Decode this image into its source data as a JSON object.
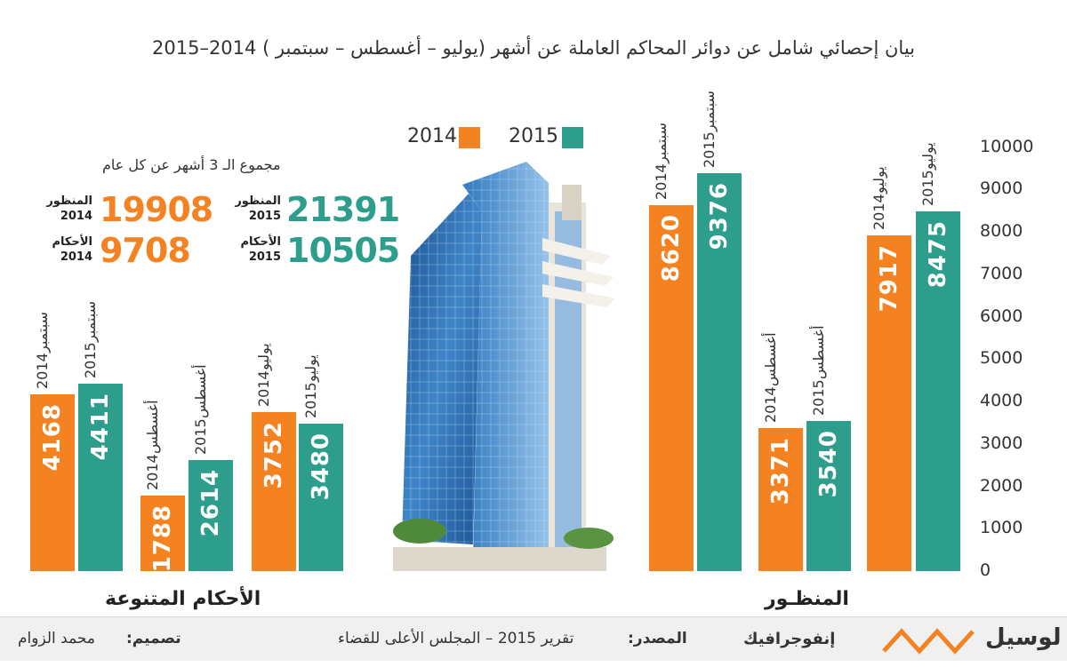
{
  "title": "بيان إحصائي شامل عن دوائر المحاكم العاملة عن أشهر (يوليو – أغسطس – سبتمبر ) 2014–2015",
  "colors": {
    "y2014": "#f58220",
    "y2015": "#2e9e8c"
  },
  "legend": {
    "y2015": "2015",
    "y2014": "2014"
  },
  "summary": {
    "caption": "مجموع الـ 3 أشهر عن كل عام",
    "items": [
      {
        "label1": "المنظور",
        "label2": "2015",
        "value": "21391",
        "color": "#2e9e8c"
      },
      {
        "label1": "المنظور",
        "label2": "2014",
        "value": "19908",
        "color": "#f58220"
      },
      {
        "label1": "الأحكام",
        "label2": "2015",
        "value": "10505",
        "color": "#2e9e8c"
      },
      {
        "label1": "الأحكام",
        "label2": "2014",
        "value": "9708",
        "color": "#f58220"
      }
    ]
  },
  "chart_data": [
    {
      "type": "bar",
      "title": "المنظـور",
      "ylim": [
        0,
        10000
      ],
      "yticks": [
        "0",
        "1000",
        "2000",
        "3000",
        "4000",
        "5000",
        "6000",
        "7000",
        "8000",
        "9000",
        "10000"
      ],
      "groups": [
        {
          "bars": [
            {
              "label": "يوليو 2015",
              "year": "2015",
              "value": 8475
            },
            {
              "label": "يوليو 2014",
              "year": "2014",
              "value": 7917
            }
          ]
        },
        {
          "bars": [
            {
              "label": "أغسطس 2015",
              "year": "2015",
              "value": 3540
            },
            {
              "label": "أغسطس 2014",
              "year": "2014",
              "value": 3371
            }
          ]
        },
        {
          "bars": [
            {
              "label": "سبتمبر 2015",
              "year": "2015",
              "value": 9376
            },
            {
              "label": "سبتمبر 2014",
              "year": "2014",
              "value": 8620
            }
          ]
        }
      ]
    },
    {
      "type": "bar",
      "title": "الأحكام المتنوعة",
      "ylim": [
        0,
        10000
      ],
      "groups": [
        {
          "bars": [
            {
              "label": "يوليو 2015",
              "year": "2015",
              "value": 3480
            },
            {
              "label": "يوليو 2014",
              "year": "2014",
              "value": 3752
            }
          ]
        },
        {
          "bars": [
            {
              "label": "أغسطس 2015",
              "year": "2015",
              "value": 2614
            },
            {
              "label": "أغسطس 2014",
              "year": "2014",
              "value": 1788
            }
          ]
        },
        {
          "bars": [
            {
              "label": "سبتمبر 2015",
              "year": "2015",
              "value": 4411
            },
            {
              "label": "سبتمبر 2014",
              "year": "2014",
              "value": 4168
            }
          ]
        }
      ]
    }
  ],
  "footer": {
    "logo": "لوسيل",
    "brand": "إنفوجرافيك",
    "source_label": "المصدر:",
    "source_text": "تقرير 2015 – المجلس الأعلى للقضاء",
    "design_label": "تصميم:",
    "design_text": "محمد الزوام"
  }
}
